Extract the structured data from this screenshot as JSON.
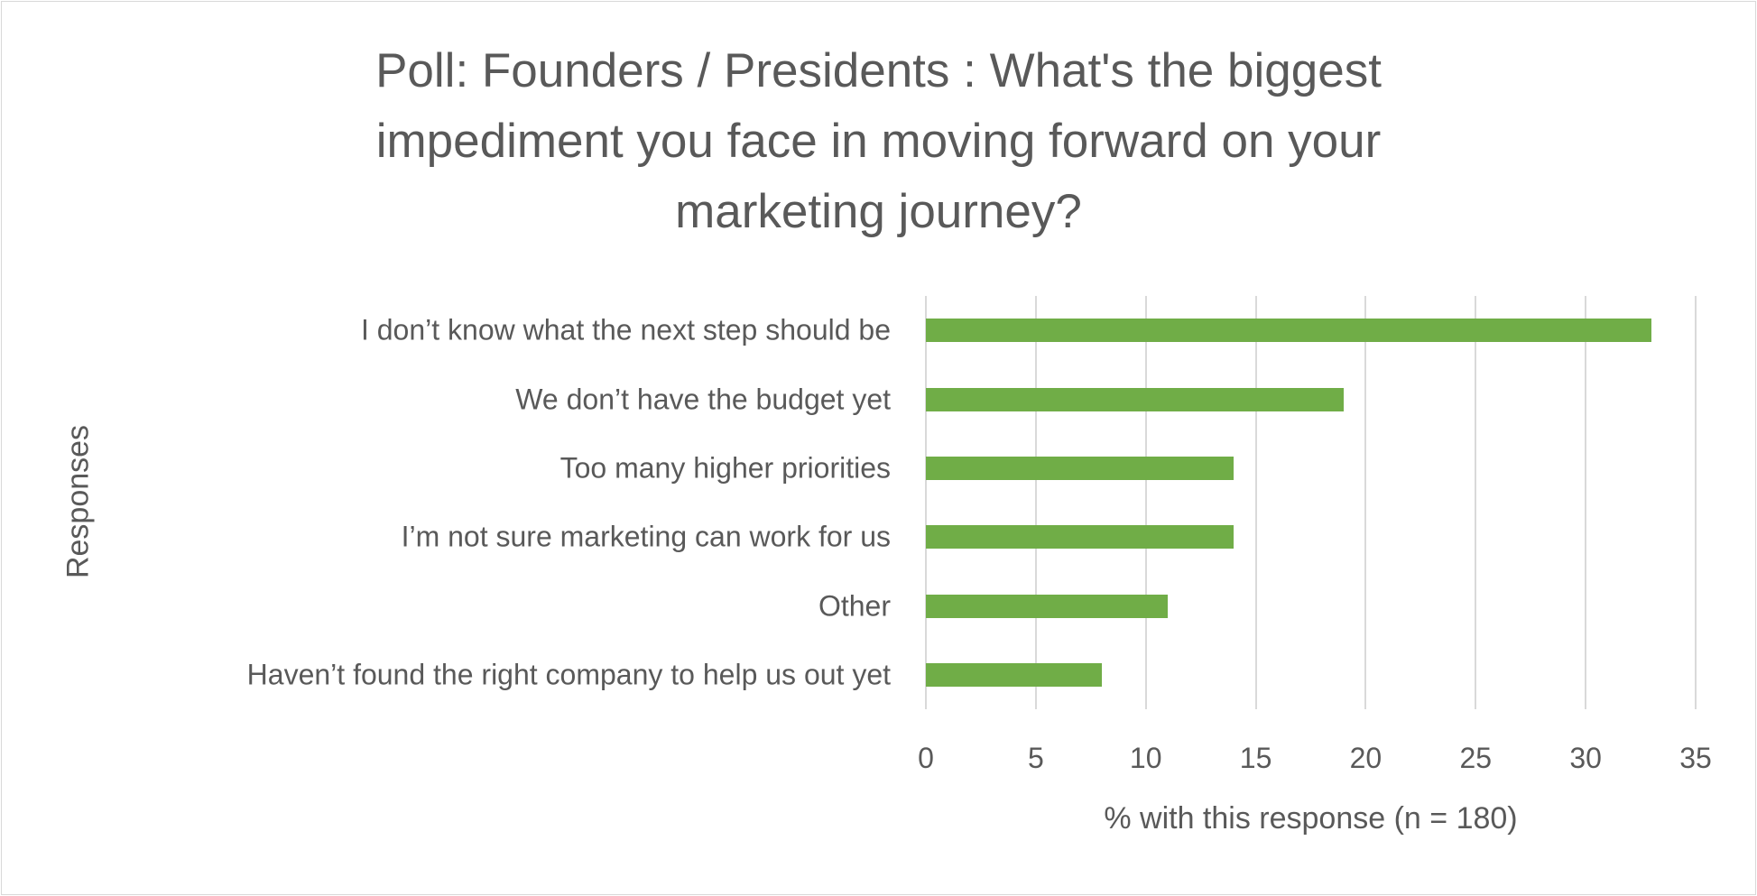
{
  "chart_data": {
    "type": "bar",
    "orientation": "horizontal",
    "title_lines": [
      "Poll: Founders / Presidents : What's the biggest",
      "impediment you face in moving forward on your",
      "marketing journey?"
    ],
    "categories": [
      "I don’t know what the next step should be",
      "We don’t have the budget yet",
      "Too many higher priorities",
      "I’m not sure marketing can work for us",
      "Other",
      "Haven’t found the right company to help us out yet"
    ],
    "values": [
      33,
      19,
      14,
      14,
      11,
      8
    ],
    "xlabel": "% with this response (n = 180)",
    "ylabel": "Responses",
    "xlim": [
      0,
      35
    ],
    "xticks": [
      "0",
      "5",
      "10",
      "15",
      "20",
      "25",
      "30",
      "35"
    ],
    "grid": true,
    "bar_color": "#70ad47"
  }
}
